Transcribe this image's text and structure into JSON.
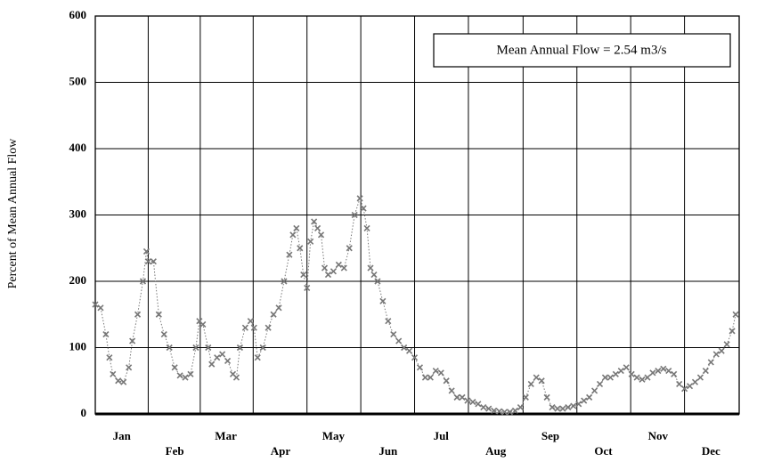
{
  "chart_data": {
    "type": "line",
    "y_label": "Percent of Mean Annual Flow",
    "annotation": "Mean Annual Flow = 2.54 m3/s",
    "x": [
      0,
      3,
      6,
      8,
      10,
      13,
      16,
      19,
      21,
      24,
      27,
      29,
      30,
      33,
      36,
      39,
      42,
      45,
      48,
      51,
      54,
      57,
      59,
      61,
      64,
      66,
      69,
      72,
      75,
      78,
      80,
      82,
      85,
      88,
      90,
      92,
      95,
      98,
      101,
      104,
      107,
      110,
      112,
      114,
      116,
      118,
      120,
      122,
      124,
      126,
      128,
      130,
      132,
      135,
      138,
      141,
      144,
      147,
      150,
      152,
      154,
      156,
      158,
      160,
      163,
      166,
      169,
      172,
      175,
      178,
      181,
      184,
      187,
      190,
      193,
      196,
      199,
      202,
      205,
      208,
      211,
      214,
      217,
      220,
      223,
      226,
      229,
      232,
      235,
      238,
      241,
      244,
      247,
      250,
      253,
      256,
      259,
      262,
      265,
      268,
      271,
      274,
      277,
      280,
      283,
      286,
      289,
      292,
      295,
      298,
      301,
      304,
      307,
      310,
      313,
      316,
      319,
      322,
      325,
      328,
      331,
      334,
      337,
      340,
      343,
      346,
      349,
      352,
      355,
      358,
      361,
      363
    ],
    "series": [
      {
        "color": "#777777",
        "values": [
          165,
          160,
          120,
          85,
          60,
          50,
          48,
          70,
          110,
          150,
          200,
          245,
          230,
          230,
          150,
          120,
          100,
          70,
          58,
          55,
          60,
          100,
          140,
          135,
          100,
          75,
          85,
          90,
          80,
          60,
          55,
          100,
          130,
          140,
          130,
          85,
          100,
          130,
          150,
          160,
          200,
          240,
          270,
          280,
          250,
          210,
          190,
          260,
          290,
          280,
          270,
          220,
          210,
          215,
          225,
          220,
          250,
          300,
          325,
          310,
          280,
          220,
          210,
          200,
          170,
          140,
          120,
          110,
          100,
          95,
          85,
          70,
          55,
          55,
          65,
          62,
          50,
          35,
          25,
          25,
          20,
          18,
          15,
          10,
          8,
          5,
          4,
          3,
          3,
          5,
          10,
          25,
          45,
          55,
          50,
          25,
          10,
          8,
          8,
          10,
          12,
          15,
          20,
          25,
          35,
          45,
          55,
          55,
          60,
          65,
          70,
          60,
          55,
          52,
          55,
          62,
          65,
          68,
          65,
          60,
          45,
          38,
          42,
          48,
          55,
          65,
          78,
          90,
          95,
          105,
          125,
          150
        ]
      }
    ],
    "xlim": [
      0,
      365
    ],
    "xticks": [
      {
        "value": 15,
        "label": "Jan"
      },
      {
        "value": 45,
        "label": "Feb"
      },
      {
        "value": 74,
        "label": "Mar"
      },
      {
        "value": 105,
        "label": "Apr"
      },
      {
        "value": 135,
        "label": "May"
      },
      {
        "value": 166,
        "label": "Jun"
      },
      {
        "value": 196,
        "label": "Jul"
      },
      {
        "value": 227,
        "label": "Aug"
      },
      {
        "value": 258,
        "label": "Sep"
      },
      {
        "value": 288,
        "label": "Oct"
      },
      {
        "value": 319,
        "label": "Nov"
      },
      {
        "value": 349,
        "label": "Dec"
      }
    ],
    "ylim": [
      0,
      600
    ],
    "yticks": [
      0,
      100,
      200,
      300,
      400,
      500,
      600
    ],
    "grid": true
  }
}
